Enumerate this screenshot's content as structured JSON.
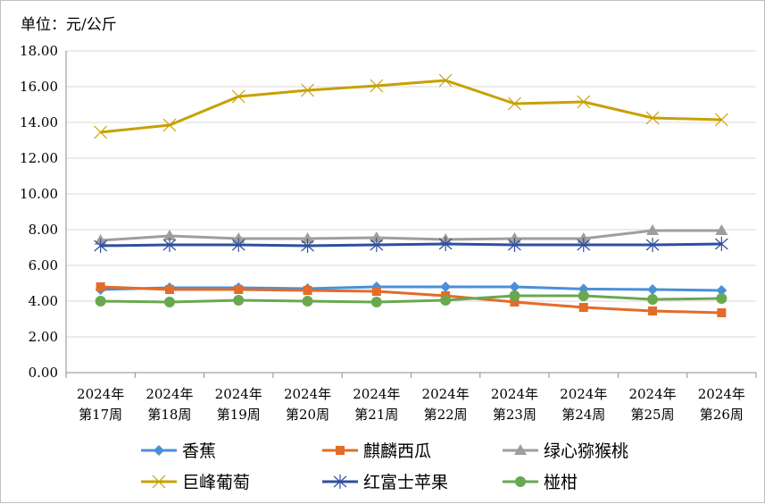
{
  "chart_data": {
    "type": "line",
    "unit_label": "单位：元/公斤",
    "categories": [
      [
        "2024年",
        "第17周"
      ],
      [
        "2024年",
        "第18周"
      ],
      [
        "2024年",
        "第19周"
      ],
      [
        "2024年",
        "第20周"
      ],
      [
        "2024年",
        "第21周"
      ],
      [
        "2024年",
        "第22周"
      ],
      [
        "2024年",
        "第23周"
      ],
      [
        "2024年",
        "第24周"
      ],
      [
        "2024年",
        "第25周"
      ],
      [
        "2024年",
        "第26周"
      ]
    ],
    "ylim": [
      0,
      18
    ],
    "yticks": [
      0,
      2,
      4,
      6,
      8,
      10,
      12,
      14,
      16,
      18
    ],
    "ytick_labels": [
      "0.00",
      "2.00",
      "4.00",
      "6.00",
      "8.00",
      "10.00",
      "12.00",
      "14.00",
      "16.00",
      "18.00"
    ],
    "grid": "horizontal",
    "legend_position": "bottom",
    "series": [
      {
        "name": "香蕉",
        "color": "#4a90d9",
        "marker": "diamond",
        "values": [
          4.65,
          4.75,
          4.75,
          4.7,
          4.8,
          4.8,
          4.8,
          4.68,
          4.65,
          4.6
        ]
      },
      {
        "name": "麒麟西瓜",
        "color": "#e36c28",
        "marker": "square",
        "values": [
          4.8,
          4.65,
          4.65,
          4.6,
          4.55,
          4.3,
          3.95,
          3.65,
          3.45,
          3.35
        ]
      },
      {
        "name": "绿心猕猴桃",
        "color": "#9e9e9e",
        "marker": "triangle",
        "values": [
          7.4,
          7.65,
          7.5,
          7.5,
          7.55,
          7.45,
          7.5,
          7.5,
          7.95,
          7.95
        ]
      },
      {
        "name": "巨峰葡萄",
        "color": "#c8a000",
        "marker": "x",
        "values": [
          13.45,
          13.85,
          15.45,
          15.8,
          16.05,
          16.35,
          15.05,
          15.15,
          14.25,
          14.15
        ]
      },
      {
        "name": "红富士苹果",
        "color": "#2f4f9e",
        "marker": "star",
        "values": [
          7.1,
          7.15,
          7.15,
          7.1,
          7.15,
          7.2,
          7.15,
          7.15,
          7.15,
          7.2
        ]
      },
      {
        "name": "椪柑",
        "color": "#6aa84f",
        "marker": "circle",
        "values": [
          4.0,
          3.95,
          4.05,
          4.0,
          3.95,
          4.05,
          4.3,
          4.3,
          4.1,
          4.15
        ]
      }
    ]
  }
}
